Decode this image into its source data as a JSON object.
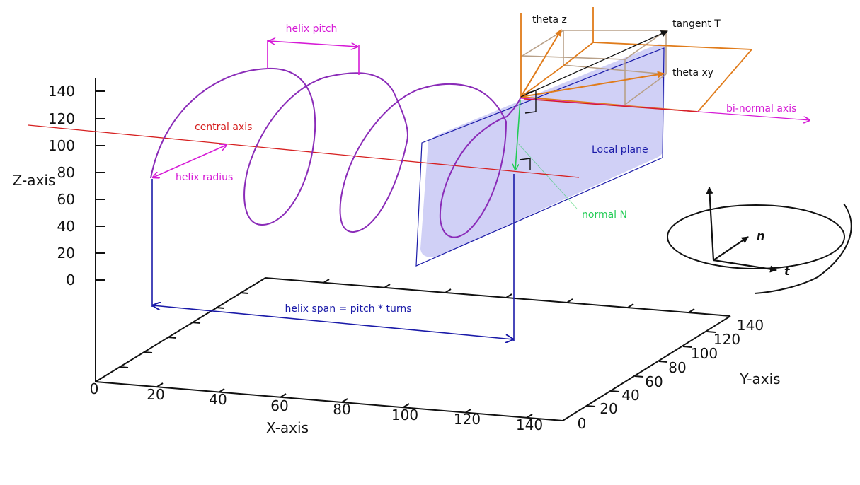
{
  "axes": {
    "x_title": "X-axis",
    "y_title": "Y-axis",
    "z_title": "Z-axis",
    "x_ticks": [
      "0",
      "20",
      "40",
      "60",
      "80",
      "100",
      "120",
      "140"
    ],
    "y_ticks": [
      "0",
      "20",
      "40",
      "60",
      "80",
      "100",
      "120",
      "140"
    ],
    "z_ticks": [
      "0",
      "20",
      "40",
      "60",
      "80",
      "100",
      "120",
      "140"
    ]
  },
  "labels": {
    "helix_pitch": "helix pitch",
    "central_axis": "central axis",
    "helix_radius": "helix radius",
    "helix_span": "helix span = pitch * turns",
    "local_plane": "Local plane",
    "normal_n": "normal N",
    "binormal_axis": "bi-normal axis",
    "tangent_t": "tangent T",
    "theta_z": "theta z",
    "theta_xy": "theta xy"
  },
  "inset": {
    "n_label": "n",
    "t_label": "t"
  },
  "colors": {
    "helix": "#8a2bb8",
    "central_axis": "#d62020",
    "magenta": "#d61ad6",
    "blue": "#1a1aa8",
    "plane_fill": "#c8c8f4",
    "normal": "#22cc55",
    "orange": "#e07b1a",
    "tan": "#b8a088",
    "axis_line": "#111111"
  }
}
